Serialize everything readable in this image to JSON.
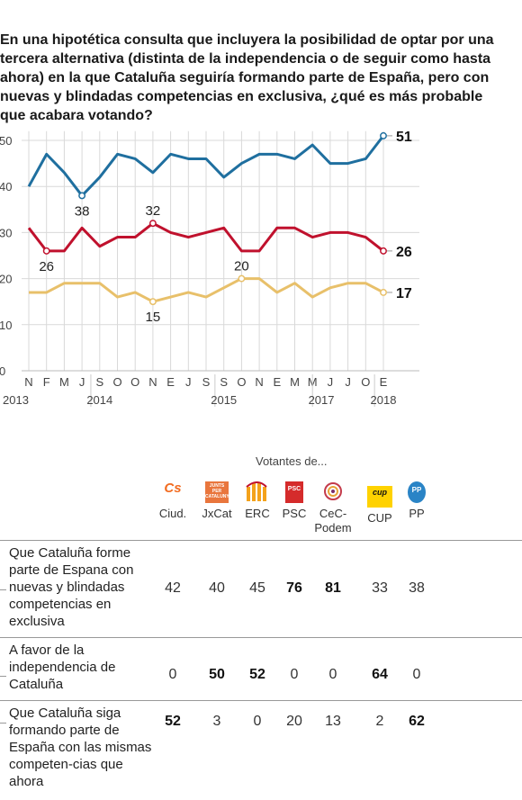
{
  "title": "En una hipotética consulta que incluyera la posibilidad de optar por una tercera alternativa (distinta de la independencia o de seguir como hasta ahora) en la que Cataluña seguiría formando parte de España, pero con nuevas y blindadas competencias en exclusiva, ¿qué es más probable que acabara votando?",
  "chart_data": [
    {
      "type": "line",
      "x": [
        "N",
        "F",
        "M",
        "J",
        "S",
        "O",
        "O",
        "N",
        "E",
        "J",
        "S",
        "S",
        "O",
        "N",
        "E",
        "M",
        "M",
        "J",
        "J",
        "O",
        "E"
      ],
      "x_years": [
        {
          "label": "2013",
          "at_index": 0
        },
        {
          "label": "2014",
          "at_index": 4
        },
        {
          "label": "2015",
          "at_index": 11
        },
        {
          "label": "2017",
          "at_index": 16.5
        },
        {
          "label": "2018",
          "at_index": 20
        }
      ],
      "y_ticks": [
        0,
        10,
        20,
        30,
        40,
        50
      ],
      "ylim": [
        0,
        52
      ],
      "grid": "vertical-and-horizontal",
      "series": [
        {
          "color": "#1f6f9f",
          "values": [
            40,
            47,
            43,
            38,
            42,
            47,
            46,
            43,
            47,
            46,
            46,
            42,
            45,
            47,
            47,
            46,
            49,
            45,
            45,
            46,
            51
          ]
        },
        {
          "color": "#c0112d",
          "values": [
            31,
            26,
            26,
            31,
            27,
            29,
            29,
            32,
            30,
            29,
            30,
            31,
            26,
            26,
            31,
            31,
            29,
            30,
            30,
            29,
            26
          ]
        },
        {
          "color": "#e8c06a",
          "values": [
            17,
            17,
            19,
            19,
            19,
            16,
            17,
            15,
            16,
            17,
            16,
            18,
            20,
            20,
            17,
            19,
            16,
            18,
            19,
            19,
            17
          ]
        }
      ],
      "point_labels": [
        {
          "series": 0,
          "index": 3,
          "text": "38"
        },
        {
          "series": 1,
          "index": 1,
          "text": "26"
        },
        {
          "series": 1,
          "index": 7,
          "text": "32"
        },
        {
          "series": 2,
          "index": 7,
          "text": "15"
        },
        {
          "series": 2,
          "index": 12,
          "text": "20"
        }
      ],
      "end_labels": [
        "51",
        "26",
        "17"
      ]
    },
    {
      "type": "table",
      "header_title": "Votantes de...",
      "columns": [
        {
          "name": "Ciud.",
          "logo": "Cs",
          "color": "#f26c21"
        },
        {
          "name": "JxCat",
          "logo": "JUNTS PER CATALUNYA",
          "color": "#e9763d"
        },
        {
          "name": "ERC",
          "logo": "erc-stripes",
          "color": "#f4a21b"
        },
        {
          "name": "PSC",
          "logo": "PSC",
          "color": "#d52b2b"
        },
        {
          "name": "CeC-Podem",
          "name_lines": [
            "CeC-",
            "Podem"
          ],
          "logo": "cec-swirl",
          "color": "#c43b4b"
        },
        {
          "name": "CUP",
          "logo": "cup",
          "color": "#ffd200"
        },
        {
          "name": "PP",
          "logo": "PP",
          "color": "#2a84c6"
        }
      ],
      "rows": [
        {
          "label": "Que Cataluña forme parte de Espana con nuevas y blindadas competencias en exclusiva",
          "values": [
            42,
            40,
            45,
            76,
            81,
            33,
            38
          ],
          "bold": [
            false,
            false,
            false,
            true,
            true,
            false,
            false
          ]
        },
        {
          "label": "A favor de la independencia de Cataluña",
          "values": [
            0,
            50,
            52,
            0,
            0,
            64,
            0
          ],
          "bold": [
            false,
            true,
            true,
            false,
            false,
            true,
            false
          ]
        },
        {
          "label": "Que Cataluña siga formando parte de España con las mismas competen-cias que ahora",
          "values": [
            52,
            3,
            0,
            20,
            13,
            2,
            62
          ],
          "bold": [
            true,
            false,
            false,
            false,
            false,
            false,
            true
          ]
        }
      ]
    }
  ]
}
